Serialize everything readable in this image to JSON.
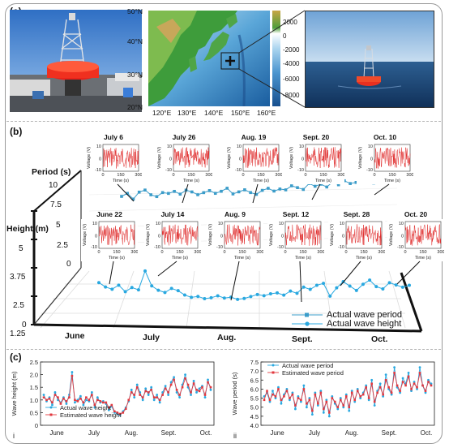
{
  "panels": {
    "a": "(a)",
    "b": "(b)",
    "c": "(c)"
  },
  "map": {
    "lat_labels": [
      "50°N",
      "40°N",
      "30°N",
      "20°N"
    ],
    "lon_labels": [
      "120°E",
      "130°E",
      "140°E",
      "150°E",
      "160°E"
    ],
    "colorbar_ticks": [
      "2000",
      "0",
      "-2000",
      "-4000",
      "-6000",
      "-8000"
    ]
  },
  "panel_b": {
    "period_axis_title": "Period (s)",
    "height_axis_title": "Height (m)",
    "period_ticks": [
      "10",
      "7.5",
      "5",
      "2.5",
      "0"
    ],
    "height_ticks": [
      "5",
      "3.75",
      "2.5",
      "1.25",
      "0"
    ],
    "month_labels": [
      "June",
      "July",
      "Aug.",
      "Sept.",
      "Oct."
    ],
    "legend_period": "Actual wave period",
    "legend_height": "Actual wave height",
    "inset_ylabel": "Voltage (V)",
    "inset_xlabel": "Time (s)",
    "inset_yticks": [
      "10",
      "0",
      "-10"
    ],
    "inset_xticks": [
      "0",
      "150",
      "300"
    ],
    "top_insets": [
      "July 6",
      "July 26",
      "Aug. 19",
      "Sept. 20",
      "Oct. 10"
    ],
    "bottom_insets": [
      "June 22",
      "July 14",
      "Aug. 9",
      "Sept. 12",
      "Sept. 28",
      "Oct. 20"
    ]
  },
  "chart_data": [
    {
      "type": "line",
      "panel": "i",
      "ylabel": "Wave height (m)",
      "ylim": [
        0,
        2.5
      ],
      "yticks": [
        "0",
        "0.5",
        "1.0",
        "1.5",
        "2.0",
        "2.5"
      ],
      "xtick_labels": [
        "June",
        "July",
        "Aug.",
        "Sept.",
        "Oct."
      ],
      "series": [
        {
          "name": "Actual wave height",
          "color": "#29a8e0",
          "values": [
            1.2,
            0.95,
            1.1,
            0.8,
            1.3,
            1.0,
            0.9,
            1.1,
            0.85,
            1.2,
            2.1,
            0.9,
            1.0,
            1.15,
            0.8,
            1.0,
            0.95,
            1.3,
            0.7,
            1.1,
            0.9,
            0.95,
            0.85,
            0.6,
            0.75,
            0.5,
            0.45,
            0.4,
            0.55,
            0.7,
            0.95,
            1.4,
            1.1,
            1.6,
            1.3,
            1.0,
            1.45,
            1.2,
            1.5,
            1.0,
            1.2,
            0.9,
            1.3,
            1.55,
            1.2,
            1.7,
            1.9,
            1.3,
            1.1,
            1.6,
            2.0,
            1.5,
            1.2,
            1.75,
            1.3,
            1.45,
            1.55,
            1.1,
            1.8,
            1.4
          ]
        },
        {
          "name": "Estimated wave height",
          "color": "#e2383f",
          "values": [
            1.1,
            1.0,
            1.05,
            0.9,
            1.2,
            1.1,
            0.85,
            1.05,
            0.95,
            1.1,
            1.95,
            1.0,
            0.95,
            1.05,
            0.9,
            1.1,
            1.0,
            1.2,
            0.8,
            1.0,
            0.95,
            0.9,
            0.9,
            0.7,
            0.8,
            0.55,
            0.5,
            0.45,
            0.5,
            0.65,
            1.0,
            1.3,
            1.2,
            1.5,
            1.2,
            1.1,
            1.35,
            1.3,
            1.4,
            1.1,
            1.1,
            1.0,
            1.2,
            1.45,
            1.3,
            1.6,
            1.8,
            1.4,
            1.2,
            1.5,
            1.85,
            1.6,
            1.3,
            1.65,
            1.4,
            1.35,
            1.5,
            1.2,
            1.7,
            1.5
          ]
        }
      ]
    },
    {
      "type": "line",
      "panel": "ii",
      "ylabel": "Wave period (s)",
      "ylim": [
        4.0,
        7.5
      ],
      "yticks": [
        "4.0",
        "4.5",
        "5.0",
        "5.5",
        "6.0",
        "6.5",
        "7.0",
        "7.5"
      ],
      "xtick_labels": [
        "June",
        "July",
        "Aug.",
        "Sept.",
        "Oct."
      ],
      "series": [
        {
          "name": "Actual wave period",
          "color": "#29a8e0",
          "values": [
            5.6,
            5.8,
            5.3,
            5.9,
            5.5,
            6.1,
            5.2,
            5.7,
            6.0,
            5.4,
            5.8,
            4.9,
            5.6,
            5.3,
            6.2,
            5.0,
            5.5,
            4.6,
            5.8,
            5.1,
            5.9,
            4.7,
            5.4,
            4.5,
            5.6,
            5.2,
            4.9,
            5.5,
            5.0,
            5.7,
            4.8,
            5.9,
            5.3,
            6.0,
            5.5,
            5.8,
            6.2,
            5.4,
            6.5,
            5.1,
            5.9,
            6.3,
            5.6,
            6.8,
            6.0,
            5.7,
            7.2,
            6.1,
            5.8,
            6.6,
            6.3,
            6.9,
            5.9,
            6.4,
            6.0,
            7.2,
            6.2,
            5.8,
            6.5,
            6.3
          ]
        },
        {
          "name": "Estimated wave period",
          "color": "#e2383f",
          "values": [
            5.4,
            5.9,
            5.4,
            5.7,
            5.6,
            6.0,
            5.4,
            5.6,
            5.9,
            5.5,
            5.7,
            5.1,
            5.5,
            5.4,
            6.0,
            5.2,
            5.4,
            4.8,
            5.7,
            5.2,
            5.8,
            4.9,
            5.3,
            4.7,
            5.5,
            5.3,
            5.0,
            5.4,
            5.1,
            5.6,
            5.0,
            5.8,
            5.4,
            5.9,
            5.6,
            5.7,
            6.1,
            5.5,
            6.3,
            5.3,
            5.8,
            6.1,
            5.7,
            6.5,
            6.1,
            5.8,
            6.9,
            6.2,
            5.9,
            6.4,
            6.2,
            6.7,
            6.0,
            6.3,
            6.1,
            6.9,
            6.2,
            5.9,
            6.4,
            6.2
          ]
        }
      ]
    },
    {
      "type": "line",
      "panel": "b",
      "series": [
        {
          "name": "Actual wave period",
          "values": [
            5.5,
            5.8,
            5.2,
            5.9,
            6.1,
            5.6,
            5.4,
            5.8,
            5.7,
            5.9,
            5.6,
            6.0,
            5.8,
            5.5,
            5.7,
            5.9,
            5.6,
            5.8,
            6.1,
            5.5,
            5.7,
            5.9,
            5.6,
            5.4,
            5.8,
            6.0,
            5.7,
            5.9,
            5.8,
            6.2,
            6.0,
            5.8,
            6.4,
            6.1,
            6.3,
            6.0,
            6.5,
            6.2,
            6.6,
            6.3,
            6.4,
            6.8,
            6.5,
            6.3,
            6.9,
            6.6,
            6.4,
            6.7
          ]
        },
        {
          "name": "Actual wave height",
          "values": [
            1.3,
            1.1,
            1.0,
            1.2,
            0.9,
            1.1,
            1.0,
            1.9,
            1.2,
            1.0,
            0.9,
            1.1,
            1.0,
            0.8,
            0.7,
            0.75,
            0.65,
            0.7,
            0.8,
            0.7,
            0.75,
            0.65,
            0.7,
            0.8,
            0.9,
            0.85,
            0.95,
            1.0,
            0.9,
            1.1,
            1.0,
            1.3,
            1.2,
            1.4,
            1.5,
            0.9,
            1.3,
            1.6,
            1.4,
            1.2,
            1.5,
            1.7,
            1.4,
            1.3,
            1.6,
            1.5,
            1.4,
            1.5
          ]
        }
      ]
    }
  ]
}
